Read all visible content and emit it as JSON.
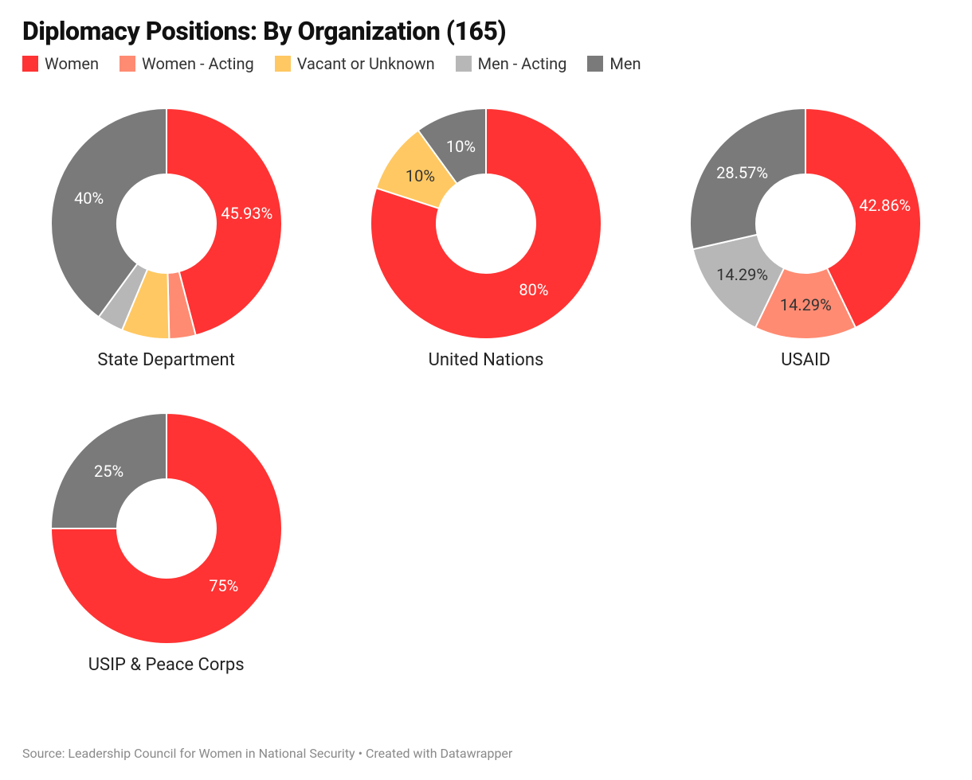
{
  "title": "Diplomacy Positions: By Organization (165)",
  "title_fontsize": 32,
  "title_fontweight": 800,
  "background_color": "#ffffff",
  "legend": [
    {
      "label": "Women",
      "color": "#ff3333"
    },
    {
      "label": "Women - Acting",
      "color": "#ff8b72"
    },
    {
      "label": "Vacant or Unknown",
      "color": "#ffc862"
    },
    {
      "label": "Men - Acting",
      "color": "#b7b7b7"
    },
    {
      "label": "Men",
      "color": "#7a7a7a"
    }
  ],
  "legend_fontsize": 20,
  "donut": {
    "outer_radius": 145,
    "inner_radius": 62,
    "label_radius": 102,
    "label_fontsize": 20,
    "label_color_dark": "#333333",
    "label_color_light": "#ffffff",
    "slice_stroke": "#ffffff",
    "slice_stroke_width": 2,
    "svg_size": 290
  },
  "chart_title_fontsize": 22,
  "chart_title_color": "#222222",
  "charts": [
    {
      "title": "State Department",
      "slices": [
        {
          "value": 45.93,
          "label_text": "45.93%",
          "category": "Women",
          "color": "#ff3333",
          "label_color": "#ffffff"
        },
        {
          "value": 3.7,
          "label_text": "",
          "category": "Women - Acting",
          "color": "#ff8b72"
        },
        {
          "value": 6.67,
          "label_text": "",
          "category": "Vacant or Unknown",
          "color": "#ffc862"
        },
        {
          "value": 3.7,
          "label_text": "",
          "category": "Men - Acting",
          "color": "#b7b7b7"
        },
        {
          "value": 40.0,
          "label_text": "40%",
          "category": "Men",
          "color": "#7a7a7a",
          "label_color": "#ffffff"
        }
      ]
    },
    {
      "title": "United Nations",
      "slices": [
        {
          "value": 80.0,
          "label_text": "80%",
          "category": "Women",
          "color": "#ff3333",
          "label_color": "#ffffff"
        },
        {
          "value": 10.0,
          "label_text": "10%",
          "category": "Vacant or Unknown",
          "color": "#ffc862",
          "label_color": "#333333"
        },
        {
          "value": 10.0,
          "label_text": "10%",
          "category": "Men",
          "color": "#7a7a7a",
          "label_color": "#ffffff"
        }
      ]
    },
    {
      "title": "USAID",
      "slices": [
        {
          "value": 42.86,
          "label_text": "42.86%",
          "category": "Women",
          "color": "#ff3333",
          "label_color": "#ffffff"
        },
        {
          "value": 14.29,
          "label_text": "14.29%",
          "category": "Women - Acting",
          "color": "#ff8b72",
          "label_color": "#333333"
        },
        {
          "value": 14.29,
          "label_text": "14.29%",
          "category": "Men - Acting",
          "color": "#b7b7b7",
          "label_color": "#333333"
        },
        {
          "value": 28.57,
          "label_text": "28.57%",
          "category": "Men",
          "color": "#7a7a7a",
          "label_color": "#ffffff"
        }
      ]
    },
    {
      "title": "USIP & Peace Corps",
      "slices": [
        {
          "value": 75.0,
          "label_text": "75%",
          "category": "Women",
          "color": "#ff3333",
          "label_color": "#ffffff"
        },
        {
          "value": 25.0,
          "label_text": "25%",
          "category": "Men",
          "color": "#7a7a7a",
          "label_color": "#ffffff"
        }
      ]
    }
  ],
  "footer": "Source: Leadership Council for Women in National Security • Created with Datawrapper",
  "footer_fontsize": 16,
  "footer_color": "#8a8a8a"
}
